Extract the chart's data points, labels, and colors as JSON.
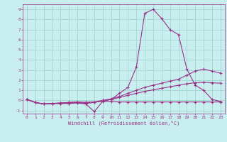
{
  "xlabel": "Windchill (Refroidissement éolien,°C)",
  "bg_color": "#c8eef0",
  "grid_color": "#9ed0c8",
  "line_color": "#993388",
  "xlim": [
    -0.5,
    23.5
  ],
  "ylim": [
    -1.3,
    9.5
  ],
  "yticks": [
    -1,
    0,
    1,
    2,
    3,
    4,
    5,
    6,
    7,
    8,
    9
  ],
  "xticks": [
    0,
    1,
    2,
    3,
    4,
    5,
    6,
    7,
    8,
    9,
    10,
    11,
    12,
    13,
    14,
    15,
    16,
    17,
    18,
    19,
    20,
    21,
    22,
    23
  ],
  "line1_x": [
    0,
    1,
    2,
    3,
    4,
    5,
    6,
    7,
    8,
    9,
    10,
    11,
    12,
    13,
    14,
    15,
    16,
    17,
    18,
    19,
    20,
    21,
    22,
    23
  ],
  "line1_y": [
    0.1,
    -0.2,
    -0.35,
    -0.3,
    -0.3,
    -0.3,
    -0.25,
    -0.35,
    -1.1,
    -0.1,
    0.1,
    0.7,
    1.3,
    3.3,
    8.6,
    9.0,
    8.1,
    7.0,
    6.5,
    3.1,
    1.5,
    1.0,
    0.1,
    -0.1
  ],
  "line2_x": [
    0,
    1,
    2,
    3,
    4,
    5,
    6,
    7,
    8,
    9,
    10,
    11,
    12,
    13,
    14,
    15,
    16,
    17,
    18,
    19,
    20,
    21,
    22,
    23
  ],
  "line2_y": [
    0.1,
    -0.2,
    -0.35,
    -0.3,
    -0.3,
    -0.25,
    -0.2,
    -0.3,
    -0.2,
    0.0,
    0.15,
    0.4,
    0.7,
    1.0,
    1.3,
    1.5,
    1.7,
    1.9,
    2.1,
    2.5,
    2.9,
    3.1,
    2.9,
    2.7
  ],
  "line3_x": [
    0,
    1,
    2,
    3,
    4,
    5,
    6,
    7,
    8,
    9,
    10,
    11,
    12,
    13,
    14,
    15,
    16,
    17,
    18,
    19,
    20,
    21,
    22,
    23
  ],
  "line3_y": [
    0.1,
    -0.2,
    -0.35,
    -0.3,
    -0.25,
    -0.2,
    -0.15,
    -0.2,
    -0.15,
    0.0,
    0.1,
    0.3,
    0.5,
    0.7,
    0.9,
    1.05,
    1.2,
    1.35,
    1.5,
    1.65,
    1.75,
    1.8,
    1.75,
    1.7
  ],
  "line4_x": [
    0,
    1,
    2,
    3,
    4,
    5,
    6,
    7,
    8,
    9,
    10,
    11,
    12,
    13,
    14,
    15,
    16,
    17,
    18,
    19,
    20,
    21,
    22,
    23
  ],
  "line4_y": [
    0.1,
    -0.2,
    -0.35,
    -0.3,
    -0.25,
    -0.2,
    -0.15,
    -0.2,
    -0.15,
    -0.1,
    -0.1,
    -0.15,
    -0.15,
    -0.15,
    -0.15,
    -0.15,
    -0.15,
    -0.15,
    -0.15,
    -0.15,
    -0.15,
    -0.15,
    -0.15,
    -0.15
  ]
}
